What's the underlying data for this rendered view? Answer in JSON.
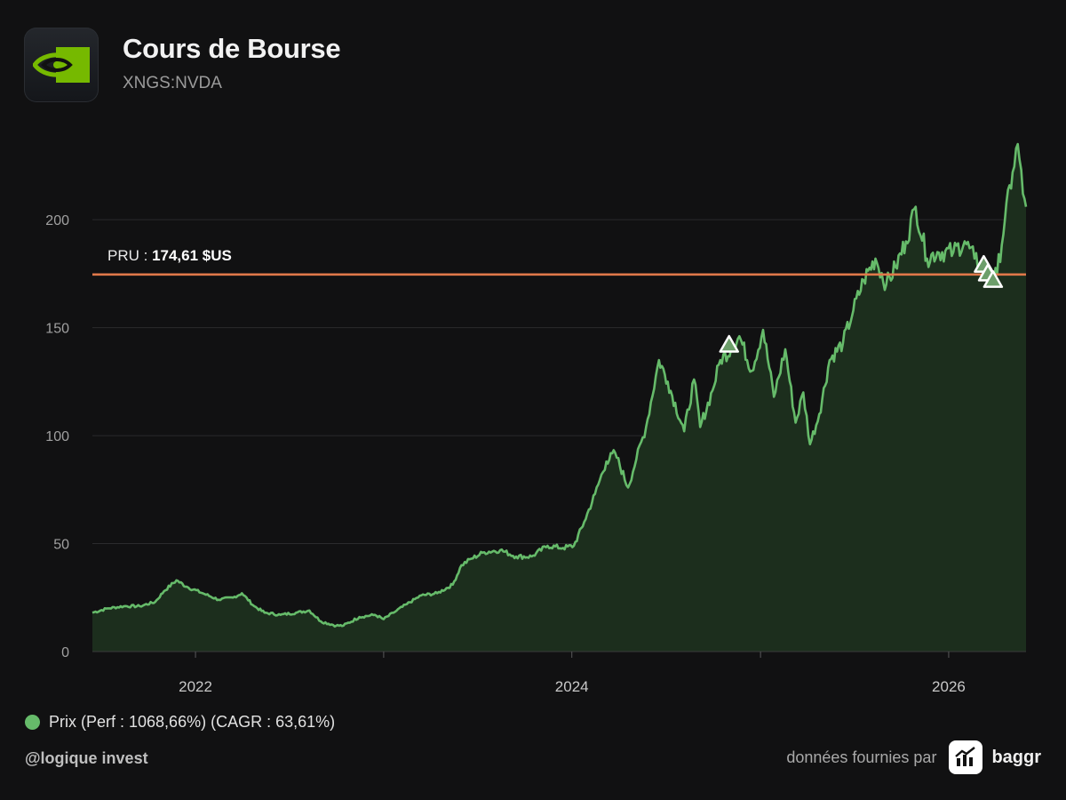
{
  "header": {
    "title": "Cours de Bourse",
    "ticker": "XNGS:NVDA",
    "logo_icon": "nvidia-eye-icon"
  },
  "legend": {
    "label": "Prix (Perf : 1068,66%) (CAGR : 63,61%)",
    "color": "#66bb6a"
  },
  "footer": {
    "handle": "@logique invest",
    "source_text": "données fournies par",
    "brand": "baggr",
    "brand_icon": "bar-chart-trend-icon"
  },
  "chart_data": {
    "type": "area",
    "title": "Cours de Bourse",
    "xlabel": "",
    "ylabel": "",
    "ylim": [
      0,
      240
    ],
    "xlim": [
      "2021-06-15",
      "2026-05-31"
    ],
    "y_ticks": [
      0,
      50,
      100,
      150,
      200
    ],
    "x_tick_labels": [
      "2022",
      "2024",
      "2026"
    ],
    "grid": true,
    "reference_line": {
      "label": "PRU",
      "value": 174.61,
      "value_text": "174,61 $US",
      "color": "#e0784a"
    },
    "line_color": "#66bb6a",
    "fill_color": "#1c2e1d",
    "series": [
      {
        "name": "Prix",
        "points": [
          [
            "2021-06-15",
            18
          ],
          [
            "2021-07-15",
            20
          ],
          [
            "2021-08-15",
            21
          ],
          [
            "2021-09-15",
            21
          ],
          [
            "2021-10-15",
            23
          ],
          [
            "2021-11-01",
            28
          ],
          [
            "2021-11-25",
            33
          ],
          [
            "2021-12-15",
            30
          ],
          [
            "2022-01-15",
            27
          ],
          [
            "2022-02-15",
            24
          ],
          [
            "2022-03-15",
            25
          ],
          [
            "2022-04-01",
            27
          ],
          [
            "2022-04-25",
            21
          ],
          [
            "2022-05-15",
            18
          ],
          [
            "2022-06-15",
            17
          ],
          [
            "2022-07-15",
            18
          ],
          [
            "2022-08-10",
            19
          ],
          [
            "2022-09-01",
            14
          ],
          [
            "2022-10-01",
            12
          ],
          [
            "2022-10-15",
            12
          ],
          [
            "2022-11-15",
            16
          ],
          [
            "2022-12-15",
            17
          ],
          [
            "2023-01-01",
            15
          ],
          [
            "2023-01-20",
            18
          ],
          [
            "2023-02-15",
            22
          ],
          [
            "2023-03-15",
            26
          ],
          [
            "2023-04-15",
            27
          ],
          [
            "2023-05-15",
            31
          ],
          [
            "2023-06-01",
            40
          ],
          [
            "2023-06-20",
            43
          ],
          [
            "2023-07-15",
            46
          ],
          [
            "2023-08-15",
            47
          ],
          [
            "2023-09-15",
            44
          ],
          [
            "2023-10-15",
            44
          ],
          [
            "2023-11-15",
            49
          ],
          [
            "2023-12-15",
            48
          ],
          [
            "2024-01-05",
            49
          ],
          [
            "2024-01-25",
            60
          ],
          [
            "2024-02-15",
            73
          ],
          [
            "2024-03-08",
            88
          ],
          [
            "2024-03-25",
            92
          ],
          [
            "2024-04-19",
            76
          ],
          [
            "2024-05-05",
            89
          ],
          [
            "2024-05-24",
            104
          ],
          [
            "2024-06-18",
            135
          ],
          [
            "2024-07-05",
            125
          ],
          [
            "2024-08-06",
            102
          ],
          [
            "2024-08-25",
            126
          ],
          [
            "2024-09-06",
            104
          ],
          [
            "2024-09-30",
            121
          ],
          [
            "2024-10-15",
            135
          ],
          [
            "2024-11-05",
            140
          ],
          [
            "2024-11-21",
            146
          ],
          [
            "2024-12-15",
            130
          ],
          [
            "2025-01-06",
            149
          ],
          [
            "2025-01-27",
            118
          ],
          [
            "2025-02-18",
            140
          ],
          [
            "2025-03-10",
            106
          ],
          [
            "2025-03-25",
            120
          ],
          [
            "2025-04-07",
            96
          ],
          [
            "2025-04-25",
            110
          ],
          [
            "2025-05-15",
            135
          ],
          [
            "2025-06-10",
            143
          ],
          [
            "2025-06-30",
            158
          ],
          [
            "2025-07-20",
            172
          ],
          [
            "2025-08-12",
            182
          ],
          [
            "2025-09-02",
            170
          ],
          [
            "2025-09-20",
            178
          ],
          [
            "2025-10-10",
            190
          ],
          [
            "2025-10-29",
            206
          ],
          [
            "2025-11-20",
            182
          ],
          [
            "2025-12-10",
            185
          ],
          [
            "2026-01-10",
            185
          ],
          [
            "2026-02-01",
            190
          ],
          [
            "2026-02-20",
            182
          ],
          [
            "2026-03-05",
            178
          ],
          [
            "2026-03-20",
            170
          ],
          [
            "2026-04-05",
            175
          ],
          [
            "2026-04-20",
            200
          ],
          [
            "2026-05-05",
            222
          ],
          [
            "2026-05-15",
            235
          ],
          [
            "2026-05-25",
            212
          ],
          [
            "2026-05-31",
            206
          ]
        ]
      }
    ],
    "markers": [
      {
        "type": "triangle",
        "date": "2024-11-01",
        "value": 142
      },
      {
        "type": "triangle",
        "date": "2026-03-10",
        "value": 179
      },
      {
        "type": "triangle",
        "date": "2026-03-18",
        "value": 175
      },
      {
        "type": "triangle",
        "date": "2026-03-28",
        "value": 172
      }
    ]
  }
}
